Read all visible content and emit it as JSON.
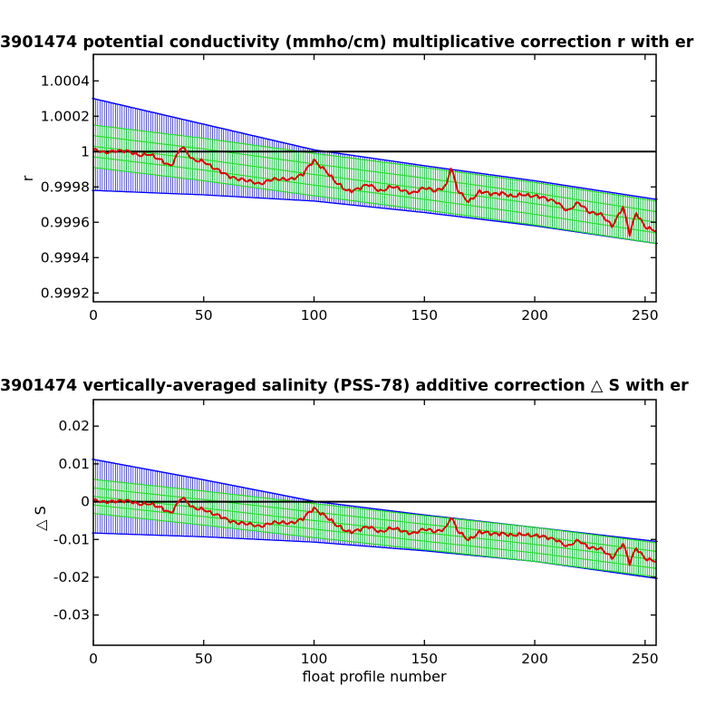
{
  "chart_data": [
    {
      "type": "line",
      "title": "3901474 potential conductivity (mmho/cm) multiplicative correction r with er",
      "xlabel": "",
      "ylabel": "r",
      "xlim": [
        0,
        255
      ],
      "ylim": [
        0.99915,
        1.00055
      ],
      "xticks": [
        0,
        50,
        100,
        150,
        200,
        250
      ],
      "xtick_labels": [
        "0",
        "50",
        "100",
        "150",
        "200",
        "250"
      ],
      "yticks": [
        0.9992,
        0.9994,
        0.9996,
        0.9998,
        1.0,
        1.0002,
        1.0004
      ],
      "ytick_labels": [
        "0.9992",
        "0.9994",
        "0.9996",
        "0.9998",
        "1",
        "1.0002",
        "1.0004"
      ],
      "reference_line": 1.0,
      "series": [
        {
          "role": "fit-error-band",
          "color": "#0000ff",
          "x": [
            0,
            50,
            100,
            150,
            200,
            255
          ],
          "upper": [
            1.0003,
            1.000155,
            1.00001,
            0.99992,
            0.999835,
            0.99973
          ],
          "lower": [
            0.99978,
            0.999755,
            0.99972,
            0.999655,
            0.99958,
            0.99948
          ]
        },
        {
          "role": "fit-band",
          "color": "#00ee00",
          "x": [
            0,
            50,
            100,
            150,
            200,
            255
          ],
          "center": [
            1.00003,
            0.999955,
            0.99987,
            0.99979,
            0.999705,
            0.9996
          ],
          "halfwidth": 0.00012
        },
        {
          "role": "estimate",
          "color": "#dd0000",
          "x": [
            0,
            5,
            10,
            15,
            20,
            25,
            30,
            35,
            40,
            45,
            50,
            55,
            60,
            65,
            70,
            75,
            80,
            85,
            90,
            95,
            100,
            105,
            110,
            115,
            120,
            125,
            130,
            135,
            140,
            145,
            150,
            155,
            160,
            162,
            165,
            170,
            175,
            180,
            185,
            190,
            195,
            200,
            205,
            210,
            215,
            220,
            225,
            230,
            235,
            240,
            243,
            246,
            250,
            255
          ],
          "y": [
            1.00001,
            0.99999,
            1.00001,
            1.0,
            0.99998,
            0.99999,
            0.99995,
            0.99992,
            1.00003,
            0.99995,
            0.99995,
            0.9999,
            0.99987,
            0.99985,
            0.99983,
            0.99982,
            0.99984,
            0.99984,
            0.99985,
            0.99987,
            0.99995,
            0.9999,
            0.99982,
            0.99978,
            0.99979,
            0.99981,
            0.99978,
            0.9998,
            0.99978,
            0.99977,
            0.99979,
            0.99978,
            0.99981,
            0.99991,
            0.99978,
            0.99972,
            0.99977,
            0.99976,
            0.99977,
            0.99974,
            0.99976,
            0.99975,
            0.99973,
            0.99972,
            0.99966,
            0.99971,
            0.99966,
            0.99964,
            0.99958,
            0.99969,
            0.99953,
            0.99965,
            0.99958,
            0.99955
          ]
        }
      ]
    },
    {
      "type": "line",
      "title": "3901474 vertically-averaged salinity (PSS-78) additive correction △ S with er",
      "xlabel": "float profile number",
      "ylabel": "△ S",
      "xlim": [
        0,
        255
      ],
      "ylim": [
        -0.038,
        0.027
      ],
      "xticks": [
        0,
        50,
        100,
        150,
        200,
        250
      ],
      "xtick_labels": [
        "0",
        "50",
        "100",
        "150",
        "200",
        "250"
      ],
      "yticks": [
        -0.03,
        -0.02,
        -0.01,
        0,
        0.01,
        0.02
      ],
      "ytick_labels": [
        "-0.03",
        "-0.02",
        "-0.01",
        "0",
        "0.01",
        "0.02"
      ],
      "reference_line": 0,
      "series": [
        {
          "role": "fit-error-band",
          "color": "#0000ff",
          "x": [
            0,
            50,
            100,
            150,
            200,
            255
          ],
          "upper": [
            0.0112,
            0.0058,
            0.0001,
            -0.0035,
            -0.0068,
            -0.0105
          ],
          "lower": [
            -0.0083,
            -0.0093,
            -0.0107,
            -0.013,
            -0.0158,
            -0.0203
          ]
        },
        {
          "role": "fit-band",
          "color": "#00ee00",
          "x": [
            0,
            50,
            100,
            150,
            200,
            255
          ],
          "center": [
            0.0014,
            -0.0017,
            -0.005,
            -0.0082,
            -0.0113,
            -0.0154
          ],
          "halfwidth": 0.0045
        },
        {
          "role": "estimate",
          "color": "#dd0000",
          "x": [
            0,
            5,
            10,
            15,
            20,
            25,
            30,
            35,
            40,
            45,
            50,
            55,
            60,
            65,
            70,
            75,
            80,
            85,
            90,
            95,
            100,
            105,
            110,
            115,
            120,
            125,
            130,
            135,
            140,
            145,
            150,
            155,
            160,
            162,
            165,
            170,
            175,
            180,
            185,
            190,
            195,
            200,
            205,
            210,
            215,
            220,
            225,
            230,
            235,
            240,
            243,
            246,
            250,
            255
          ],
          "y": [
            0.0003,
            -0.0003,
            0.0004,
            0.0001,
            -0.0006,
            -0.0003,
            -0.0017,
            -0.0029,
            0.0012,
            -0.0018,
            -0.0018,
            -0.0035,
            -0.0046,
            -0.0054,
            -0.0061,
            -0.0064,
            -0.0057,
            -0.0057,
            -0.0054,
            -0.0046,
            -0.0018,
            -0.0035,
            -0.0064,
            -0.0078,
            -0.0075,
            -0.0068,
            -0.0078,
            -0.0071,
            -0.0078,
            -0.0082,
            -0.0075,
            -0.0078,
            -0.0068,
            -0.0041,
            -0.0078,
            -0.0099,
            -0.0082,
            -0.0085,
            -0.0082,
            -0.0092,
            -0.0085,
            -0.0089,
            -0.0096,
            -0.0099,
            -0.012,
            -0.0103,
            -0.012,
            -0.0127,
            -0.0148,
            -0.011,
            -0.0165,
            -0.0124,
            -0.0148,
            -0.0158
          ]
        }
      ]
    }
  ]
}
